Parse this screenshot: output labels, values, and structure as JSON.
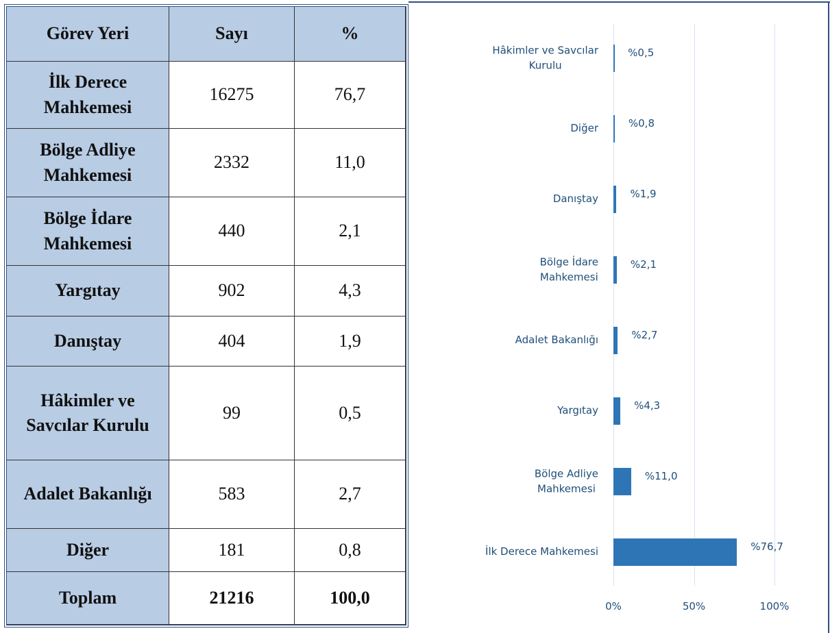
{
  "table": {
    "header": [
      "Görev Yeri",
      "Sayı",
      "%"
    ],
    "rows": [
      [
        "İlk Derece Mahkemesi",
        "16275",
        "76,7"
      ],
      [
        "Bölge Adliye Mahkemesi",
        "2332",
        "11,0"
      ],
      [
        "Bölge İdare Mahkemesi",
        "440",
        "2,1"
      ],
      [
        "Yargıtay",
        "902",
        "4,3"
      ],
      [
        "Danıştay",
        "404",
        "1,9"
      ],
      [
        "Hâkimler ve Savcılar Kurulu",
        "99",
        "0,5"
      ],
      [
        "Adalet Bakanlığı",
        "583",
        "2,7"
      ],
      [
        "Diğer",
        "181",
        "0,8"
      ]
    ],
    "total": [
      "Toplam",
      "21216",
      "100,0"
    ]
  },
  "chart_data": {
    "type": "hbar",
    "categories": [
      "Hâkimler ve Savcılar\nKurulu",
      "Diğer",
      "Danıştay",
      "Bölge İdare\nMahkemesi",
      "Adalet Bakanlığı",
      "Yargıtay",
      "Bölge Adliye\nMahkemesi",
      "İlk Derece Mahkemesi"
    ],
    "values": [
      0.5,
      0.8,
      1.9,
      2.1,
      2.7,
      4.3,
      11.0,
      76.7
    ],
    "value_labels": [
      "%0,5",
      "%0,8",
      "%1,9",
      "%2,1",
      "%2,7",
      "%4,3",
      "%11,0",
      "%76,7"
    ],
    "color": "#2e75b6",
    "xlim": [
      0,
      100
    ],
    "xticks": [
      {
        "value": 0,
        "label": "0%"
      },
      {
        "value": 50,
        "label": "50%"
      },
      {
        "value": 100,
        "label": "100%"
      }
    ],
    "grid": true
  }
}
